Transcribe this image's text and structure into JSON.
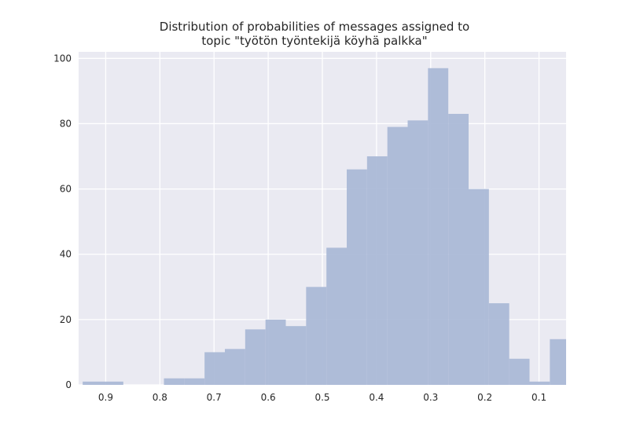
{
  "chart_data": {
    "type": "bar",
    "title_lines": [
      "Distribution of probabilities of messages assigned to",
      "topic \"työtön työntekijä köyhä palkka\""
    ],
    "xlabel": "",
    "ylabel": "",
    "x_reversed": true,
    "xlim": [
      0.95,
      0.05
    ],
    "ylim": [
      0,
      102
    ],
    "x_ticks": [
      0.9,
      0.8,
      0.7,
      0.6,
      0.5,
      0.4,
      0.3,
      0.2,
      0.1
    ],
    "x_tick_labels": [
      "0.9",
      "0.8",
      "0.7",
      "0.6",
      "0.5",
      "0.4",
      "0.3",
      "0.2",
      "0.1"
    ],
    "y_ticks": [
      0,
      20,
      40,
      60,
      80,
      100
    ],
    "y_tick_labels": [
      "0",
      "20",
      "40",
      "60",
      "80",
      "100"
    ],
    "grid": true,
    "bar_color": "#a8b7d6",
    "background_color": "#eaeaf2",
    "bin_width": 0.0375,
    "bins": [
      {
        "x_start": 0.9425,
        "x_end": 0.905,
        "count": 1
      },
      {
        "x_start": 0.905,
        "x_end": 0.8675,
        "count": 1
      },
      {
        "x_start": 0.8675,
        "x_end": 0.83,
        "count": 0
      },
      {
        "x_start": 0.83,
        "x_end": 0.7925,
        "count": 0
      },
      {
        "x_start": 0.7925,
        "x_end": 0.755,
        "count": 2
      },
      {
        "x_start": 0.755,
        "x_end": 0.7175,
        "count": 2
      },
      {
        "x_start": 0.7175,
        "x_end": 0.68,
        "count": 10
      },
      {
        "x_start": 0.68,
        "x_end": 0.6425,
        "count": 11
      },
      {
        "x_start": 0.6425,
        "x_end": 0.605,
        "count": 17
      },
      {
        "x_start": 0.605,
        "x_end": 0.5675,
        "count": 20
      },
      {
        "x_start": 0.5675,
        "x_end": 0.53,
        "count": 18
      },
      {
        "x_start": 0.53,
        "x_end": 0.4925,
        "count": 30
      },
      {
        "x_start": 0.4925,
        "x_end": 0.455,
        "count": 42
      },
      {
        "x_start": 0.455,
        "x_end": 0.4175,
        "count": 66
      },
      {
        "x_start": 0.4175,
        "x_end": 0.38,
        "count": 70
      },
      {
        "x_start": 0.38,
        "x_end": 0.3425,
        "count": 79
      },
      {
        "x_start": 0.3425,
        "x_end": 0.305,
        "count": 81
      },
      {
        "x_start": 0.305,
        "x_end": 0.2675,
        "count": 97
      },
      {
        "x_start": 0.2675,
        "x_end": 0.23,
        "count": 83
      },
      {
        "x_start": 0.23,
        "x_end": 0.1925,
        "count": 60
      },
      {
        "x_start": 0.1925,
        "x_end": 0.155,
        "count": 25
      },
      {
        "x_start": 0.155,
        "x_end": 0.1175,
        "count": 8
      },
      {
        "x_start": 0.1175,
        "x_end": 0.08,
        "count": 1
      },
      {
        "x_start": 0.08,
        "x_end": 0.0425,
        "count": 14
      }
    ]
  }
}
